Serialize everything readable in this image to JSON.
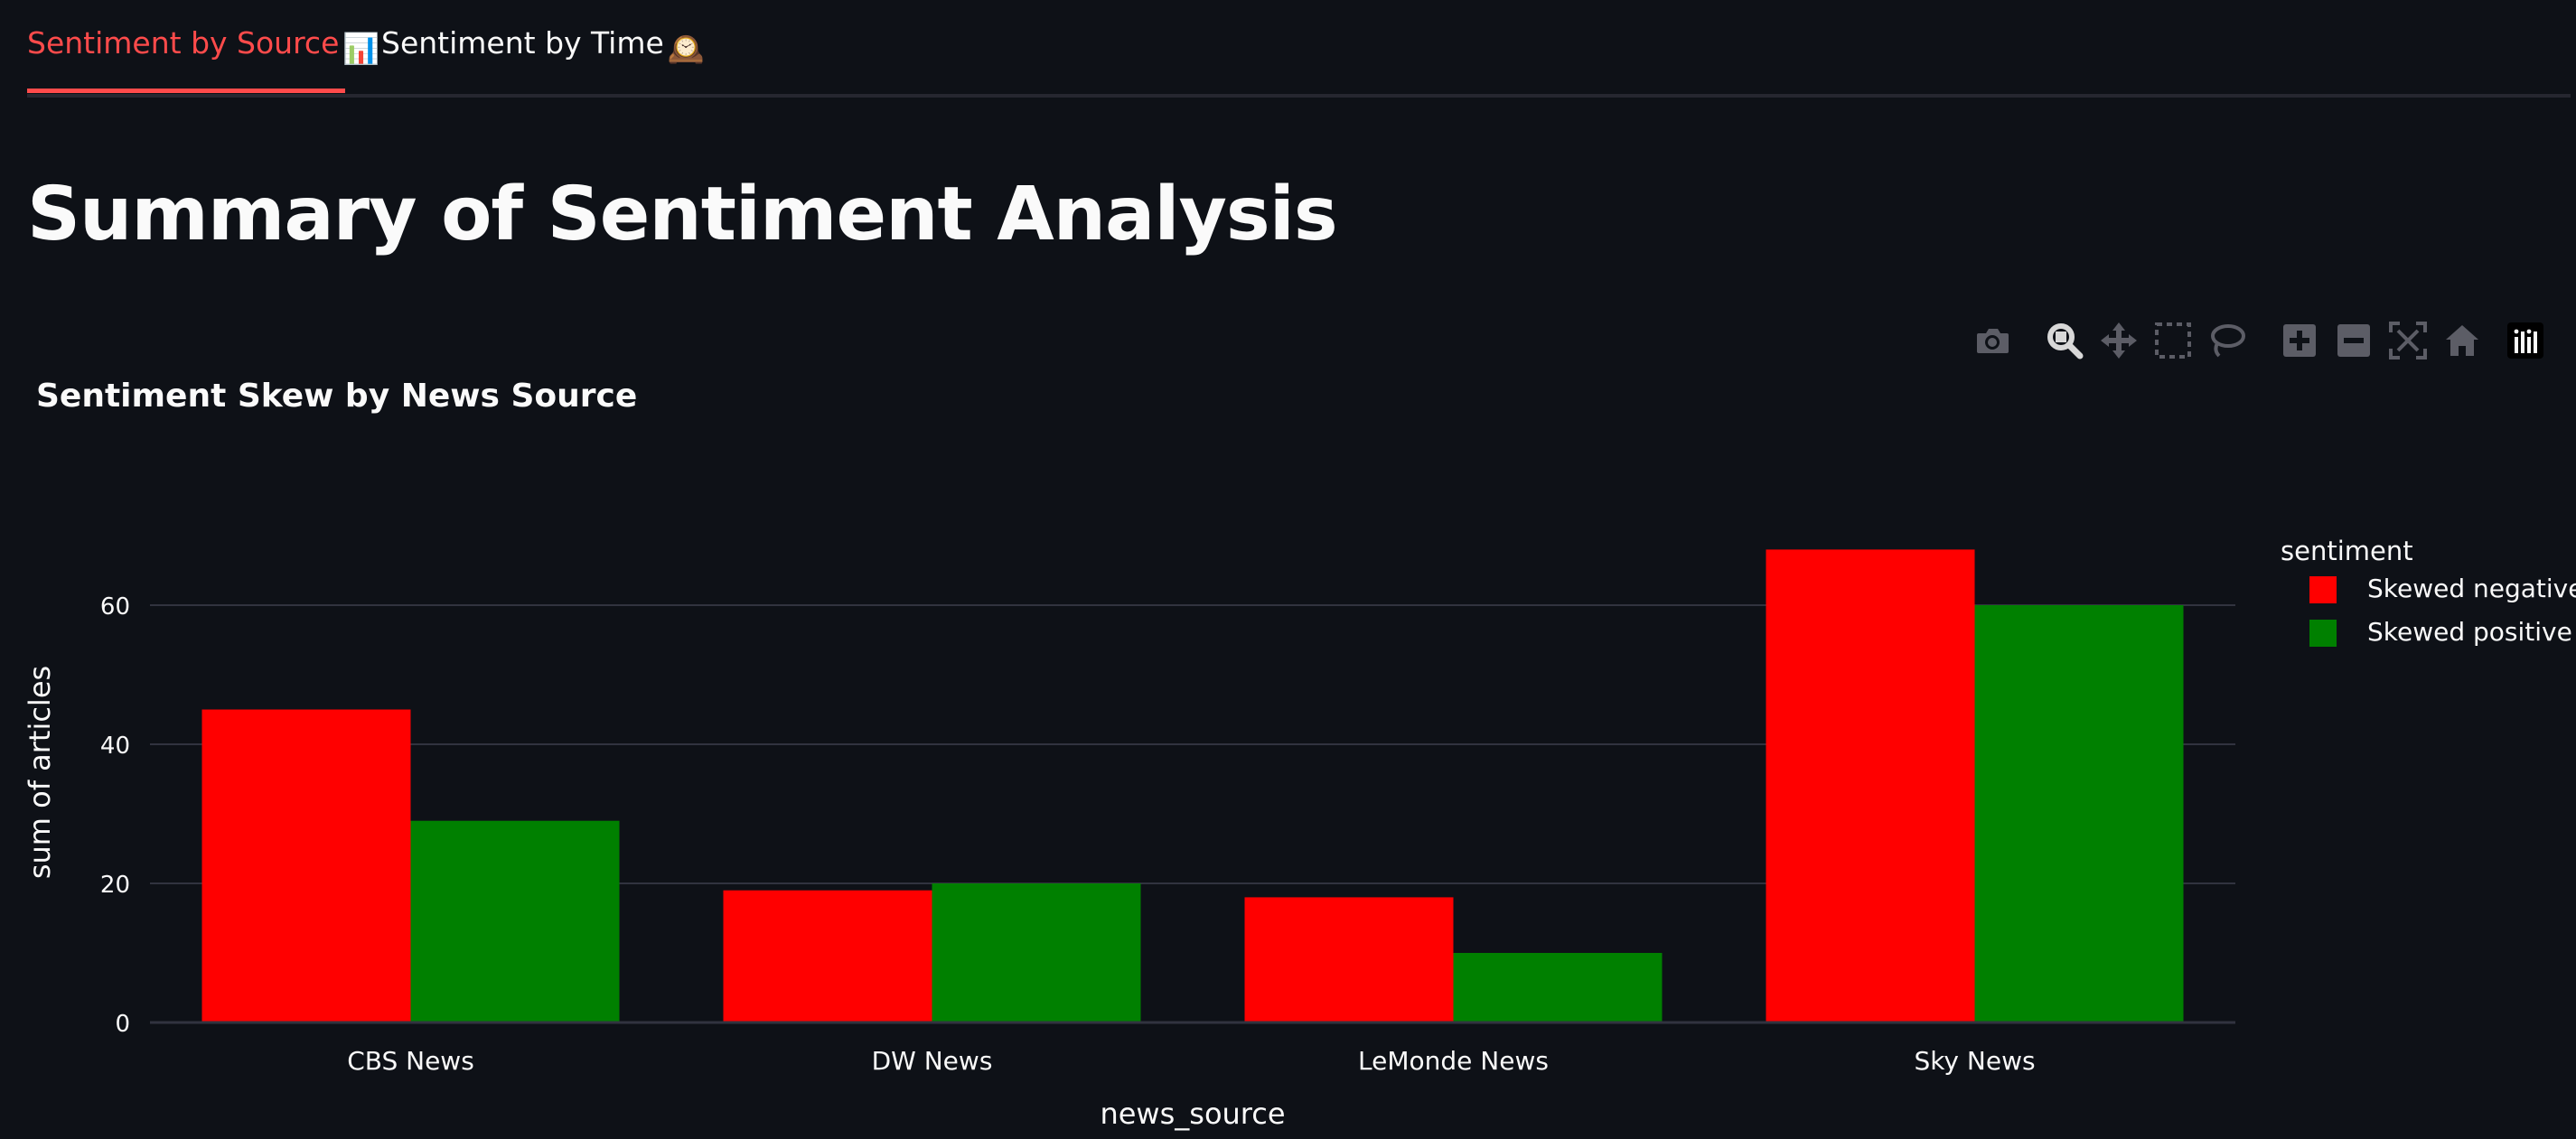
{
  "tabs": [
    {
      "label": "Sentiment by Source",
      "emoji": "📊",
      "active": true
    },
    {
      "label": "Sentiment by Time",
      "emoji": "🕰️",
      "active": false
    }
  ],
  "page": {
    "title": "Summary of Sentiment Analysis"
  },
  "modebar": {
    "buttons": [
      {
        "name": "camera-icon",
        "label": "Download plot as a png"
      },
      {
        "name": "zoom-icon",
        "label": "Zoom"
      },
      {
        "name": "pan-icon",
        "label": "Pan"
      },
      {
        "name": "box-select-icon",
        "label": "Box Select"
      },
      {
        "name": "lasso-select-icon",
        "label": "Lasso Select"
      },
      {
        "name": "zoom-in-icon",
        "label": "Zoom in"
      },
      {
        "name": "zoom-out-icon",
        "label": "Zoom out"
      },
      {
        "name": "autoscale-icon",
        "label": "Autoscale"
      },
      {
        "name": "home-icon",
        "label": "Reset axes"
      },
      {
        "name": "plotly-logo-icon",
        "label": "Produced with Plotly"
      }
    ]
  },
  "chart_data": {
    "type": "bar",
    "title": "Sentiment Skew by News Source",
    "xlabel": "news_source",
    "ylabel": "sum of articles",
    "categories": [
      "CBS News",
      "DW News",
      "LeMonde News",
      "Sky News"
    ],
    "series": [
      {
        "name": "Skewed negative",
        "color": "#ff0000",
        "values": [
          45,
          19,
          18,
          68
        ]
      },
      {
        "name": "Skewed positive",
        "color": "#008000",
        "values": [
          29,
          20,
          10,
          60
        ]
      }
    ],
    "ylim": [
      0,
      75
    ],
    "yticks": [
      0,
      20,
      40,
      60
    ],
    "grid": true,
    "legend": {
      "title": "sentiment",
      "placement": "top-right"
    },
    "barmode": "group"
  },
  "colors": {
    "background": "#0e1117",
    "text": "#fafafa",
    "accent": "#ff4b4b",
    "grid": "#31333f",
    "modebar_icon": "#5c5d66"
  }
}
